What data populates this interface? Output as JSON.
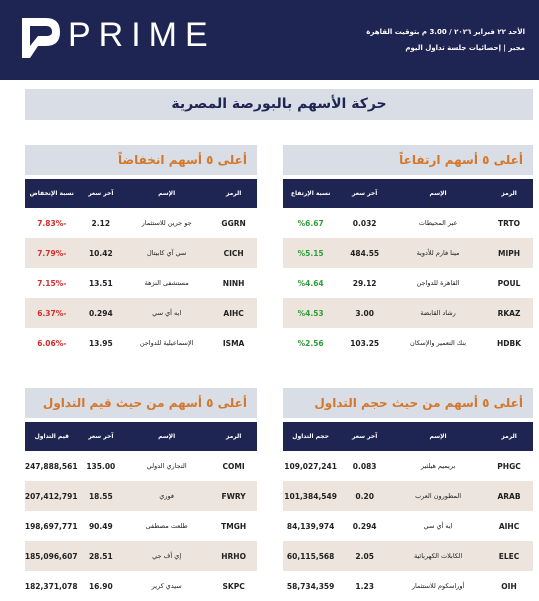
{
  "header": {
    "logo": "PRIME",
    "date": "الأحد ٢٢ فبراير ٢٠٢٦ / 3.00 م بتوقيت القاهرة",
    "subtitle": "مجبر | إحصائيات جلسة تداول اليوم"
  },
  "title": "حركة الأسهم بالبورصة المصرية",
  "sections": [
    {
      "title": "أعلى ٥ أسهم ارتفاعاً",
      "value_color": "#2e9e3a",
      "columns": [
        "الرمز",
        "الإسم",
        "آخر سعر",
        "نسبة الإرتفاع"
      ],
      "rows": [
        [
          "TRTO",
          "عبر المحيطات",
          "0.032",
          "%6.67"
        ],
        [
          "MIPH",
          "مينا فارم للأدوية",
          "484.55",
          "%5.15"
        ],
        [
          "POUL",
          "القاهرة للدواجن",
          "29.12",
          "%4.64"
        ],
        [
          "RKAZ",
          "رشاد القابضة",
          "3.00",
          "%4.53"
        ],
        [
          "HDBK",
          "بنك التعمير والإسكان",
          "103.25",
          "%2.56"
        ]
      ]
    },
    {
      "title": "أعلى ٥ أسهم انخفاضاً",
      "value_color": "#d62b2b",
      "columns": [
        "الرمز",
        "الإسم",
        "آخر سعر",
        "نسبة الإنخفاض"
      ],
      "rows": [
        [
          "GGRN",
          "جو جرين للاستثمار",
          "2.12",
          "-7.83%"
        ],
        [
          "CICH",
          "سي آي كابيتال",
          "10.42",
          "-7.79%"
        ],
        [
          "NINH",
          "مستشفى النزهة",
          "13.51",
          "-7.15%"
        ],
        [
          "AIHC",
          "ايه أي سي",
          "0.294",
          "-6.37%"
        ],
        [
          "ISMA",
          "الإسماعيلية للدواجن",
          "13.95",
          "-6.06%"
        ]
      ]
    },
    {
      "title": "أعلى ٥ أسهم من حيث حجم التداول",
      "value_color": "#222222",
      "columns": [
        "الرمز",
        "الإسم",
        "آخر سعر",
        "حجم التداول"
      ],
      "rows": [
        [
          "PHGC",
          "بريميم هيلثير",
          "0.083",
          "109,027,241"
        ],
        [
          "ARAB",
          "المطورون العرب",
          "0.20",
          "101,384,549"
        ],
        [
          "AIHC",
          "ايه أي سي",
          "0.294",
          "84,139,974"
        ],
        [
          "ELEC",
          "الكابلات الكهربائية",
          "2.05",
          "60,115,568"
        ],
        [
          "OIH",
          "أوراسكوم للاستثمار",
          "1.23",
          "58,734,359"
        ]
      ]
    },
    {
      "title": "أعلى ٥ أسهم من حيث قيم التداول",
      "value_color": "#222222",
      "columns": [
        "الرمز",
        "الإسم",
        "آخر سعر",
        "قيم التداول"
      ],
      "rows": [
        [
          "COMI",
          "التجاري الدولي",
          "135.00",
          "247,888,561"
        ],
        [
          "FWRY",
          "فوري",
          "18.55",
          "207,412,791"
        ],
        [
          "TMGH",
          "طلعت مصطفى",
          "90.49",
          "198,697,771"
        ],
        [
          "HRHO",
          "إي أف جي",
          "28.51",
          "185,096,607"
        ],
        [
          "SKPC",
          "سيدي كرير",
          "16.90",
          "182,371,078"
        ]
      ]
    }
  ]
}
